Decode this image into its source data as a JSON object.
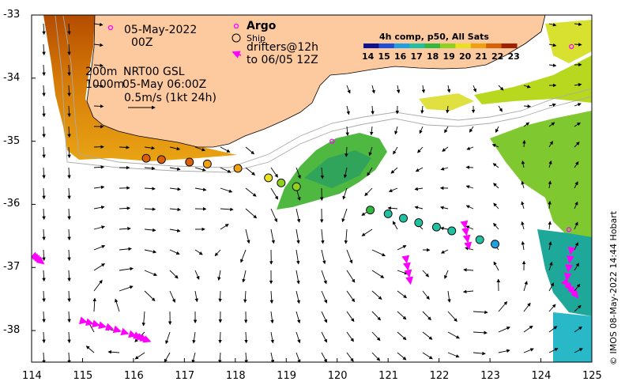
{
  "map": {
    "title_date": "05-May-2022",
    "title_time": "00Z",
    "isobath_shallow": "200m",
    "isobath_deep": "1000m",
    "product": "NRT00 GSL",
    "product_time": "05-May 06:00Z",
    "velocity_scale": "0.5m/s (1kt 24h)",
    "legend_argo": "Argo",
    "legend_ship": "Ship",
    "legend_drifters_1": "drifters@12h",
    "legend_drifters_2": "to 06/05 12Z",
    "colorbar_title": "4h comp, p50, All Sats",
    "colorbar_ticks": [
      "14",
      "15",
      "16",
      "17",
      "18",
      "19",
      "20",
      "21",
      "22",
      "23"
    ],
    "x_ticks": [
      "114",
      "115",
      "116",
      "117",
      "118",
      "119",
      "120",
      "121",
      "122",
      "123",
      "124",
      "125"
    ],
    "y_ticks": [
      "-33",
      "-34",
      "-35",
      "-36",
      "-37",
      "-38"
    ],
    "copyright": "© IMOS 08-May-2022 14:44 Hobart",
    "colors": {
      "land": "#fdcaa0",
      "argo": "#ff00ff",
      "drifter": "#ff00ff",
      "ship_outline": "#000000"
    }
  },
  "chart_data": {
    "type": "map",
    "lon_range": [
      114,
      125
    ],
    "lat_range": [
      -38.5,
      -33
    ],
    "sst_units": "degC",
    "sst_range": [
      14,
      23
    ],
    "ship_track": [
      {
        "lon": 116.25,
        "lat": -35.27,
        "sst": 22.0
      },
      {
        "lon": 116.55,
        "lat": -35.29,
        "sst": 21.6
      },
      {
        "lon": 117.1,
        "lat": -35.33,
        "sst": 21.3
      },
      {
        "lon": 117.45,
        "lat": -35.36,
        "sst": 21.0
      },
      {
        "lon": 118.05,
        "lat": -35.43,
        "sst": 20.8
      },
      {
        "lon": 118.65,
        "lat": -35.58,
        "sst": 19.6
      },
      {
        "lon": 118.9,
        "lat": -35.66,
        "sst": 19.2
      },
      {
        "lon": 119.2,
        "lat": -35.72,
        "sst": 18.9
      },
      {
        "lon": 120.65,
        "lat": -36.09,
        "sst": 17.6
      },
      {
        "lon": 121.0,
        "lat": -36.15,
        "sst": 17.4
      },
      {
        "lon": 121.3,
        "lat": -36.22,
        "sst": 17.3
      },
      {
        "lon": 121.6,
        "lat": -36.29,
        "sst": 17.2
      },
      {
        "lon": 121.95,
        "lat": -36.36,
        "sst": 17.1
      },
      {
        "lon": 122.25,
        "lat": -36.42,
        "sst": 17.0
      },
      {
        "lon": 122.8,
        "lat": -36.56,
        "sst": 16.8
      },
      {
        "lon": 123.1,
        "lat": -36.63,
        "sst": 16.7
      }
    ],
    "argo_floats": [
      {
        "lon": 115.55,
        "lat": -33.2
      },
      {
        "lon": 119.9,
        "lat": -35.0
      },
      {
        "lon": 124.6,
        "lat": -33.5
      },
      {
        "lon": 124.55,
        "lat": -36.4
      }
    ],
    "drifter_tracks": [
      [
        {
          "lon": 115.0,
          "lat": -37.85
        },
        {
          "lon": 115.5,
          "lat": -37.95
        },
        {
          "lon": 116.1,
          "lat": -38.1
        },
        {
          "lon": 116.35,
          "lat": -38.18
        }
      ],
      [
        {
          "lon": 114.1,
          "lat": -36.85
        },
        {
          "lon": 114.25,
          "lat": -36.95
        }
      ],
      [
        {
          "lon": 121.35,
          "lat": -36.85
        },
        {
          "lon": 121.45,
          "lat": -37.3
        }
      ],
      [
        {
          "lon": 122.5,
          "lat": -36.3
        },
        {
          "lon": 122.6,
          "lat": -36.75
        }
      ],
      [
        {
          "lon": 124.6,
          "lat": -36.7
        },
        {
          "lon": 124.5,
          "lat": -37.25
        },
        {
          "lon": 124.75,
          "lat": -37.5
        }
      ]
    ]
  }
}
